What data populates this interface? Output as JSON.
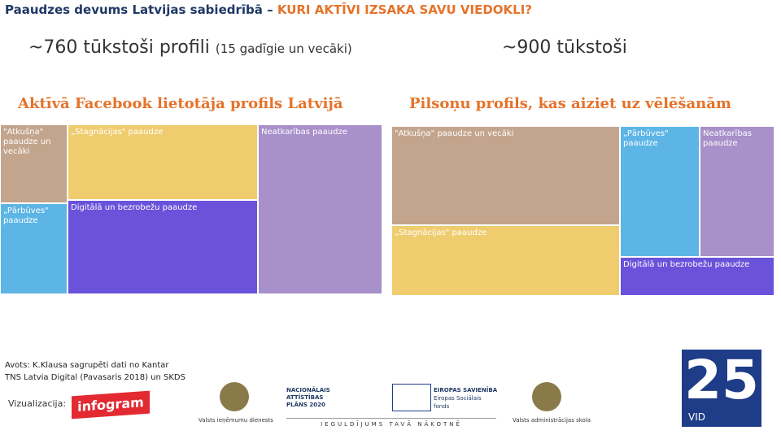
{
  "header": {
    "title_prefix": "Paaudzes devums Latvijas sabiedrībā – ",
    "title_highlight": "KURI AKTĪVI IZSAKA SAVU VIEDOKLI?"
  },
  "left": {
    "heading": "~760 tūkstoši profili",
    "heading_note": "(15 gadīgie un vecāki)",
    "subtitle": "Aktīvā Facebook lietotāja profils Latvijā",
    "cells": [
      {
        "label": "\"Atkušņa\" paaudze un vecāki",
        "color": "#c3a58d"
      },
      {
        "label": "„Pārbūves\" paaudze",
        "color": "#5db5e6"
      },
      {
        "label": "„Stagnācijas\" paaudze",
        "color": "#efcd6f"
      },
      {
        "label": "Digitālā un bezrobežu paaudze",
        "color": "#6a52da"
      },
      {
        "label": "Neatkarības paaudze",
        "color": "#a890ca"
      }
    ]
  },
  "right": {
    "heading": "~900 tūkstoši",
    "subtitle": "Pilsoņu profils, kas aiziet uz vēlēšanām",
    "cells": [
      {
        "label": "\"Atkušņa\" paaudze un vecāki",
        "color": "#c3a58d"
      },
      {
        "label": "„Stagnācijas\" paaudze",
        "color": "#efcd6f"
      },
      {
        "label": "„Pārbūves\" paaudze",
        "color": "#5db5e6"
      },
      {
        "label": "Neatkarības paaudze",
        "color": "#a890ca"
      },
      {
        "label": "Digitālā un bezrobežu paaudze",
        "color": "#6a52da"
      }
    ]
  },
  "source": {
    "lines": [
      "Avots: K.Klausa sagrupēti dati no Kantar",
      "TNS Latvia Digital (Pavasaris 2018) un SKDS"
    ]
  },
  "footer": {
    "viz_label": "Vizualizacija:",
    "viz_logo": "infogram",
    "vid_caption": "Valsts ieņēmumu dienests",
    "nap_line1": "NACIONĀLAIS",
    "nap_line2": "ATTĪSTĪBAS",
    "nap_line3": "PLĀNS 2020",
    "eu_title": "EIROPAS SAVIENĪBA",
    "eu_sub1": "Eiropas Sociālais",
    "eu_sub2": "fonds",
    "eu_slogan": "IEGULDĪJUMS TAVĀ NĀKOTNĒ",
    "vas_caption": "Valsts administrācijas skola",
    "anniv_number": "25",
    "anniv_abbr": "VID"
  }
}
